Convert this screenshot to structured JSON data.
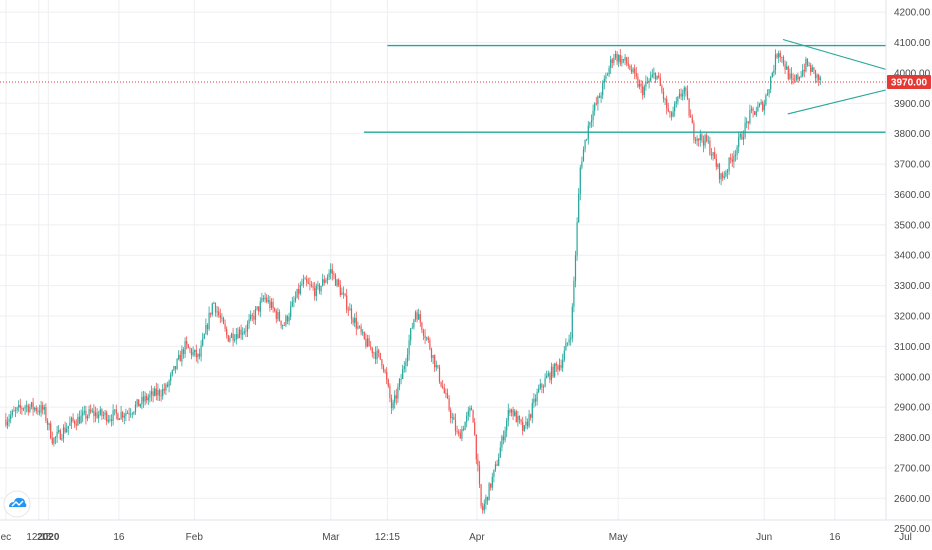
{
  "chart_data": {
    "type": "candlestick",
    "ylim": [
      2420,
      4240
    ],
    "y_ticks": [
      "4200.00",
      "4100.00",
      "4000.00",
      "3900.00",
      "3800.00",
      "3700.00",
      "3600.00",
      "3500.00",
      "3400.00",
      "3300.00",
      "3200.00",
      "3100.00",
      "3000.00",
      "2900.00",
      "2800.00",
      "2700.00",
      "2600.00",
      "2500.00"
    ],
    "x_ticks": [
      "ec",
      "12:15",
      "2020",
      "16",
      "Feb",
      "Mar",
      "12:15",
      "Apr",
      "May",
      "Jun",
      "16",
      "Jul"
    ],
    "grid": true,
    "current_price": {
      "value": 3970,
      "label": "3970.00"
    },
    "price_path": [
      [
        "2019-12-23",
        2860
      ],
      [
        "2019-12-27",
        2905
      ],
      [
        "2019-12-31",
        2890
      ],
      [
        "2020-01-02",
        2790
      ],
      [
        "2020-01-06",
        2850
      ],
      [
        "2020-01-10",
        2880
      ],
      [
        "2020-01-14",
        2870
      ],
      [
        "2020-01-18",
        2885
      ],
      [
        "2020-01-22",
        2930
      ],
      [
        "2020-01-26",
        2960
      ],
      [
        "2020-01-30",
        3100
      ],
      [
        "2020-02-02",
        3060
      ],
      [
        "2020-02-05",
        3250
      ],
      [
        "2020-02-08",
        3130
      ],
      [
        "2020-02-12",
        3160
      ],
      [
        "2020-02-16",
        3260
      ],
      [
        "2020-02-20",
        3170
      ],
      [
        "2020-02-24",
        3310
      ],
      [
        "2020-02-27",
        3280
      ],
      [
        "2020-03-01",
        3350
      ],
      [
        "2020-03-04",
        3250
      ],
      [
        "2020-03-08",
        3120
      ],
      [
        "2020-03-12",
        3050
      ],
      [
        "2020-03-14",
        2890
      ],
      [
        "2020-03-16",
        3000
      ],
      [
        "2020-03-19",
        3220
      ],
      [
        "2020-03-22",
        3100
      ],
      [
        "2020-03-25",
        2950
      ],
      [
        "2020-03-28",
        2800
      ],
      [
        "2020-03-31",
        2900
      ],
      [
        "2020-04-02",
        2550
      ],
      [
        "2020-04-05",
        2700
      ],
      [
        "2020-04-08",
        2900
      ],
      [
        "2020-04-11",
        2820
      ],
      [
        "2020-04-14",
        2950
      ],
      [
        "2020-04-16",
        3000
      ],
      [
        "2020-04-19",
        3050
      ],
      [
        "2020-04-21",
        3150
      ],
      [
        "2020-04-23",
        3700
      ],
      [
        "2020-04-25",
        3850
      ],
      [
        "2020-04-27",
        3920
      ],
      [
        "2020-04-30",
        4060
      ],
      [
        "2020-05-03",
        4030
      ],
      [
        "2020-05-06",
        3940
      ],
      [
        "2020-05-09",
        4000
      ],
      [
        "2020-05-12",
        3850
      ],
      [
        "2020-05-15",
        3950
      ],
      [
        "2020-05-17",
        3800
      ],
      [
        "2020-05-20",
        3770
      ],
      [
        "2020-05-23",
        3650
      ],
      [
        "2020-05-26",
        3750
      ],
      [
        "2020-05-29",
        3860
      ],
      [
        "2020-06-01",
        3900
      ],
      [
        "2020-06-04",
        4080
      ],
      [
        "2020-06-07",
        3960
      ],
      [
        "2020-06-10",
        4030
      ],
      [
        "2020-06-13",
        3970
      ]
    ],
    "annotations": [
      {
        "type": "horizontal_line",
        "y": 4090,
        "x_start": "2020-03-13",
        "x_end": "2020-08-05"
      },
      {
        "type": "horizontal_line",
        "y": 3805,
        "x_start": "2020-03-08",
        "x_end": "2020-08-15"
      },
      {
        "type": "trend_line",
        "points": [
          [
            "2020-06-05",
            4110
          ],
          [
            "2020-07-05",
            3975
          ]
        ]
      },
      {
        "type": "trend_line",
        "points": [
          [
            "2020-06-06",
            3865
          ],
          [
            "2020-07-05",
            3975
          ]
        ]
      }
    ]
  },
  "colors": {
    "up": "#26a69a",
    "down": "#ef5350",
    "line": "#26a69a",
    "grid": "#eeeff2",
    "price": "#e53935",
    "axis": "#e0e3eb"
  },
  "icons": {
    "logo": "tradingview-cloud-icon"
  }
}
